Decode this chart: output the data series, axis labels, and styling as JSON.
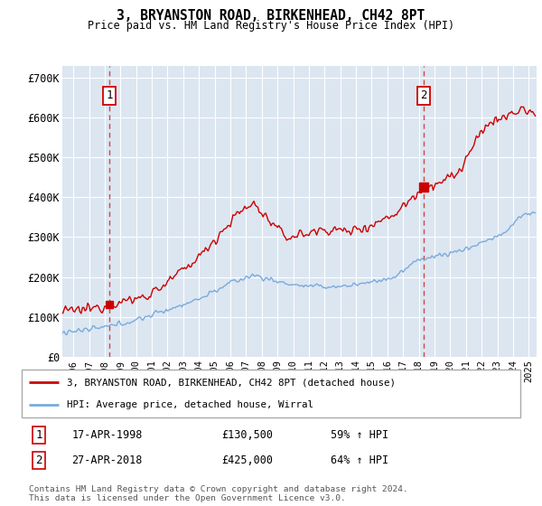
{
  "title": "3, BRYANSTON ROAD, BIRKENHEAD, CH42 8PT",
  "subtitle": "Price paid vs. HM Land Registry's House Price Index (HPI)",
  "ylabel_ticks": [
    "£0",
    "£100K",
    "£200K",
    "£300K",
    "£400K",
    "£500K",
    "£600K",
    "£700K"
  ],
  "ytick_values": [
    0,
    100000,
    200000,
    300000,
    400000,
    500000,
    600000,
    700000
  ],
  "ylim": [
    0,
    730000
  ],
  "xlim_start": 1995.3,
  "xlim_end": 2025.5,
  "background_color": "#dce6f1",
  "red_line_color": "#cc0000",
  "blue_line_color": "#7aaadd",
  "sale1_x": 1998.3,
  "sale1_price": 130500,
  "sale2_x": 2018.3,
  "sale2_price": 425000,
  "legend_label_red": "3, BRYANSTON ROAD, BIRKENHEAD, CH42 8PT (detached house)",
  "legend_label_blue": "HPI: Average price, detached house, Wirral",
  "footer": "Contains HM Land Registry data © Crown copyright and database right 2024.\nThis data is licensed under the Open Government Licence v3.0."
}
